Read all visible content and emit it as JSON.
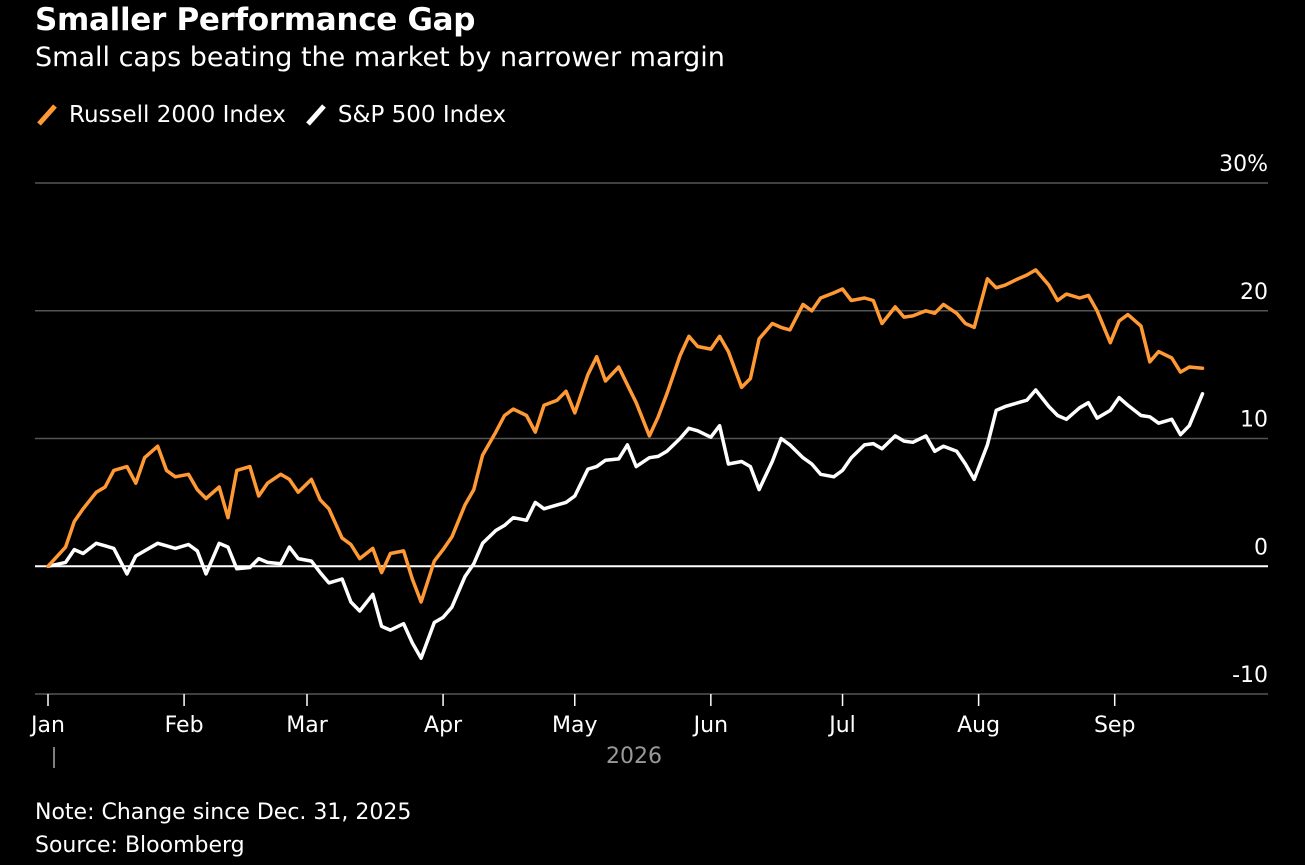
{
  "title": "Smaller Performance Gap",
  "subtitle": "Small caps beating the market by narrower margin",
  "note": "Note: Change since Dec. 31, 2025",
  "source": "Source: Bloomberg",
  "colors": {
    "russell": "#ff9933",
    "sp500": "#ffffff",
    "grid": "#555555",
    "zero": "#ffffff",
    "background": "#000000",
    "year_label": "#999999"
  },
  "legend": [
    {
      "name": "Russell 2000 Index",
      "color": "#ff9933"
    },
    {
      "name": "S&P 500 Index",
      "color": "#ffffff"
    }
  ],
  "chart_data": {
    "type": "line",
    "y_ticks": [
      {
        "value": 30,
        "label": "30%"
      },
      {
        "value": 20,
        "label": "20"
      },
      {
        "value": 10,
        "label": "10"
      },
      {
        "value": 0,
        "label": "0"
      },
      {
        "value": -10,
        "label": "-10"
      }
    ],
    "x_ticks": [
      "Jan",
      "Feb",
      "Mar",
      "Apr",
      "May",
      "Jun",
      "Jul",
      "Aug",
      "Sep"
    ],
    "x_year_label": "2026",
    "ylim": [
      -10,
      30
    ],
    "xlim": [
      "2026-01-01",
      "2026-09-30"
    ],
    "grid": true,
    "legend_position": "top-left",
    "series": [
      {
        "name": "Russell 2000 Index",
        "x": [
          "2026-01-01",
          "2026-01-05",
          "2026-01-07",
          "2026-01-09",
          "2026-01-12",
          "2026-01-14",
          "2026-01-16",
          "2026-01-19",
          "2026-01-21",
          "2026-01-23",
          "2026-01-26",
          "2026-01-28",
          "2026-01-30",
          "2026-02-02",
          "2026-02-04",
          "2026-02-06",
          "2026-02-09",
          "2026-02-11",
          "2026-02-13",
          "2026-02-16",
          "2026-02-18",
          "2026-02-20",
          "2026-02-23",
          "2026-02-25",
          "2026-02-27",
          "2026-03-02",
          "2026-03-04",
          "2026-03-06",
          "2026-03-09",
          "2026-03-11",
          "2026-03-13",
          "2026-03-16",
          "2026-03-18",
          "2026-03-20",
          "2026-03-23",
          "2026-03-25",
          "2026-03-27",
          "2026-03-30",
          "2026-04-01",
          "2026-04-03",
          "2026-04-06",
          "2026-04-08",
          "2026-04-10",
          "2026-04-13",
          "2026-04-15",
          "2026-04-17",
          "2026-04-20",
          "2026-04-22",
          "2026-04-24",
          "2026-04-27",
          "2026-04-29",
          "2026-05-01",
          "2026-05-04",
          "2026-05-06",
          "2026-05-08",
          "2026-05-11",
          "2026-05-13",
          "2026-05-15",
          "2026-05-18",
          "2026-05-20",
          "2026-05-22",
          "2026-05-25",
          "2026-05-27",
          "2026-05-29",
          "2026-06-01",
          "2026-06-03",
          "2026-06-05",
          "2026-06-08",
          "2026-06-10",
          "2026-06-12",
          "2026-06-15",
          "2026-06-17",
          "2026-06-19",
          "2026-06-22",
          "2026-06-24",
          "2026-06-26",
          "2026-06-29",
          "2026-07-01",
          "2026-07-03",
          "2026-07-06",
          "2026-07-08",
          "2026-07-10",
          "2026-07-13",
          "2026-07-15",
          "2026-07-17",
          "2026-07-20",
          "2026-07-22",
          "2026-07-24",
          "2026-07-27",
          "2026-07-29",
          "2026-07-31",
          "2026-08-03",
          "2026-08-05",
          "2026-08-07",
          "2026-08-10",
          "2026-08-12",
          "2026-08-14",
          "2026-08-17",
          "2026-08-19",
          "2026-08-21",
          "2026-08-24",
          "2026-08-26",
          "2026-08-28",
          "2026-08-31",
          "2026-09-02",
          "2026-09-04",
          "2026-09-07",
          "2026-09-09",
          "2026-09-11",
          "2026-09-14",
          "2026-09-16",
          "2026-09-18",
          "2026-09-21"
        ],
        "values": [
          0,
          1.5,
          3.5,
          4.5,
          5.8,
          6.2,
          7.5,
          7.8,
          6.5,
          8.5,
          9.4,
          7.5,
          7.0,
          7.2,
          6.0,
          5.3,
          6.2,
          3.8,
          7.5,
          7.8,
          5.5,
          6.5,
          7.2,
          6.8,
          5.8,
          6.8,
          5.2,
          4.5,
          2.2,
          1.7,
          0.6,
          1.4,
          -0.5,
          1.0,
          1.2,
          -1.0,
          -2.8,
          0.4,
          1.3,
          2.3,
          4.8,
          6.0,
          8.7,
          10.5,
          11.8,
          12.3,
          11.8,
          10.5,
          12.6,
          13.0,
          13.7,
          12.0,
          15.0,
          16.4,
          14.5,
          15.6,
          14.2,
          12.8,
          10.2,
          11.7,
          13.5,
          16.5,
          18.0,
          17.2,
          17.0,
          18.0,
          16.8,
          14.0,
          14.7,
          17.8,
          19.0,
          18.7,
          18.5,
          20.5,
          20.0,
          21.0,
          21.4,
          21.7,
          20.8,
          21.0,
          20.8,
          19.0,
          20.3,
          19.5,
          19.6,
          20.0,
          19.8,
          20.5,
          19.8,
          19.0,
          18.7,
          22.5,
          21.8,
          22.0,
          22.5,
          22.8,
          23.2,
          22.0,
          20.8,
          21.3,
          21.0,
          21.2,
          20.0,
          17.5,
          19.2,
          19.7,
          18.8,
          16.0,
          16.8,
          16.3,
          15.2,
          15.6,
          15.5
        ]
      },
      {
        "name": "S&P 500 Index",
        "x": [
          "2026-01-01",
          "2026-01-05",
          "2026-01-07",
          "2026-01-09",
          "2026-01-12",
          "2026-01-14",
          "2026-01-16",
          "2026-01-19",
          "2026-01-21",
          "2026-01-23",
          "2026-01-26",
          "2026-01-28",
          "2026-01-30",
          "2026-02-02",
          "2026-02-04",
          "2026-02-06",
          "2026-02-09",
          "2026-02-11",
          "2026-02-13",
          "2026-02-16",
          "2026-02-18",
          "2026-02-20",
          "2026-02-23",
          "2026-02-25",
          "2026-02-27",
          "2026-03-02",
          "2026-03-04",
          "2026-03-06",
          "2026-03-09",
          "2026-03-11",
          "2026-03-13",
          "2026-03-16",
          "2026-03-18",
          "2026-03-20",
          "2026-03-23",
          "2026-03-25",
          "2026-03-27",
          "2026-03-30",
          "2026-04-01",
          "2026-04-03",
          "2026-04-06",
          "2026-04-08",
          "2026-04-10",
          "2026-04-13",
          "2026-04-15",
          "2026-04-17",
          "2026-04-20",
          "2026-04-22",
          "2026-04-24",
          "2026-04-27",
          "2026-04-29",
          "2026-05-01",
          "2026-05-04",
          "2026-05-06",
          "2026-05-08",
          "2026-05-11",
          "2026-05-13",
          "2026-05-15",
          "2026-05-18",
          "2026-05-20",
          "2026-05-22",
          "2026-05-25",
          "2026-05-27",
          "2026-05-29",
          "2026-06-01",
          "2026-06-03",
          "2026-06-05",
          "2026-06-08",
          "2026-06-10",
          "2026-06-12",
          "2026-06-15",
          "2026-06-17",
          "2026-06-19",
          "2026-06-22",
          "2026-06-24",
          "2026-06-26",
          "2026-06-29",
          "2026-07-01",
          "2026-07-03",
          "2026-07-06",
          "2026-07-08",
          "2026-07-10",
          "2026-07-13",
          "2026-07-15",
          "2026-07-17",
          "2026-07-20",
          "2026-07-22",
          "2026-07-24",
          "2026-07-27",
          "2026-07-29",
          "2026-07-31",
          "2026-08-03",
          "2026-08-05",
          "2026-08-07",
          "2026-08-10",
          "2026-08-12",
          "2026-08-14",
          "2026-08-17",
          "2026-08-19",
          "2026-08-21",
          "2026-08-24",
          "2026-08-26",
          "2026-08-28",
          "2026-08-31",
          "2026-09-02",
          "2026-09-04",
          "2026-09-07",
          "2026-09-09",
          "2026-09-11",
          "2026-09-14",
          "2026-09-16",
          "2026-09-18",
          "2026-09-21"
        ],
        "values": [
          0,
          0.3,
          1.3,
          1.0,
          1.8,
          1.6,
          1.4,
          -0.6,
          0.8,
          1.2,
          1.8,
          1.6,
          1.4,
          1.7,
          1.2,
          -0.6,
          1.8,
          1.5,
          -0.2,
          -0.1,
          0.6,
          0.3,
          0.2,
          1.5,
          0.6,
          0.4,
          -0.5,
          -1.3,
          -1.0,
          -2.8,
          -3.5,
          -2.2,
          -4.7,
          -5.0,
          -4.5,
          -6.0,
          -7.2,
          -4.4,
          -4.0,
          -3.2,
          -0.8,
          0.2,
          1.8,
          2.8,
          3.2,
          3.8,
          3.6,
          5.0,
          4.5,
          4.8,
          5.0,
          5.5,
          7.6,
          7.8,
          8.3,
          8.4,
          9.5,
          7.8,
          8.5,
          8.6,
          9.0,
          10.0,
          10.8,
          10.6,
          10.1,
          11.0,
          8.0,
          8.2,
          7.8,
          6.0,
          8.2,
          10.0,
          9.5,
          8.5,
          8.0,
          7.2,
          7.0,
          7.5,
          8.5,
          9.5,
          9.6,
          9.2,
          10.2,
          9.8,
          9.7,
          10.2,
          9.0,
          9.4,
          9.0,
          8.0,
          6.8,
          9.5,
          12.2,
          12.5,
          12.8,
          13.0,
          13.8,
          12.5,
          11.8,
          11.5,
          12.4,
          12.8,
          11.6,
          12.2,
          13.2,
          12.6,
          11.8,
          11.7,
          11.2,
          11.5,
          10.3,
          11.0,
          13.5
        ]
      }
    ]
  }
}
